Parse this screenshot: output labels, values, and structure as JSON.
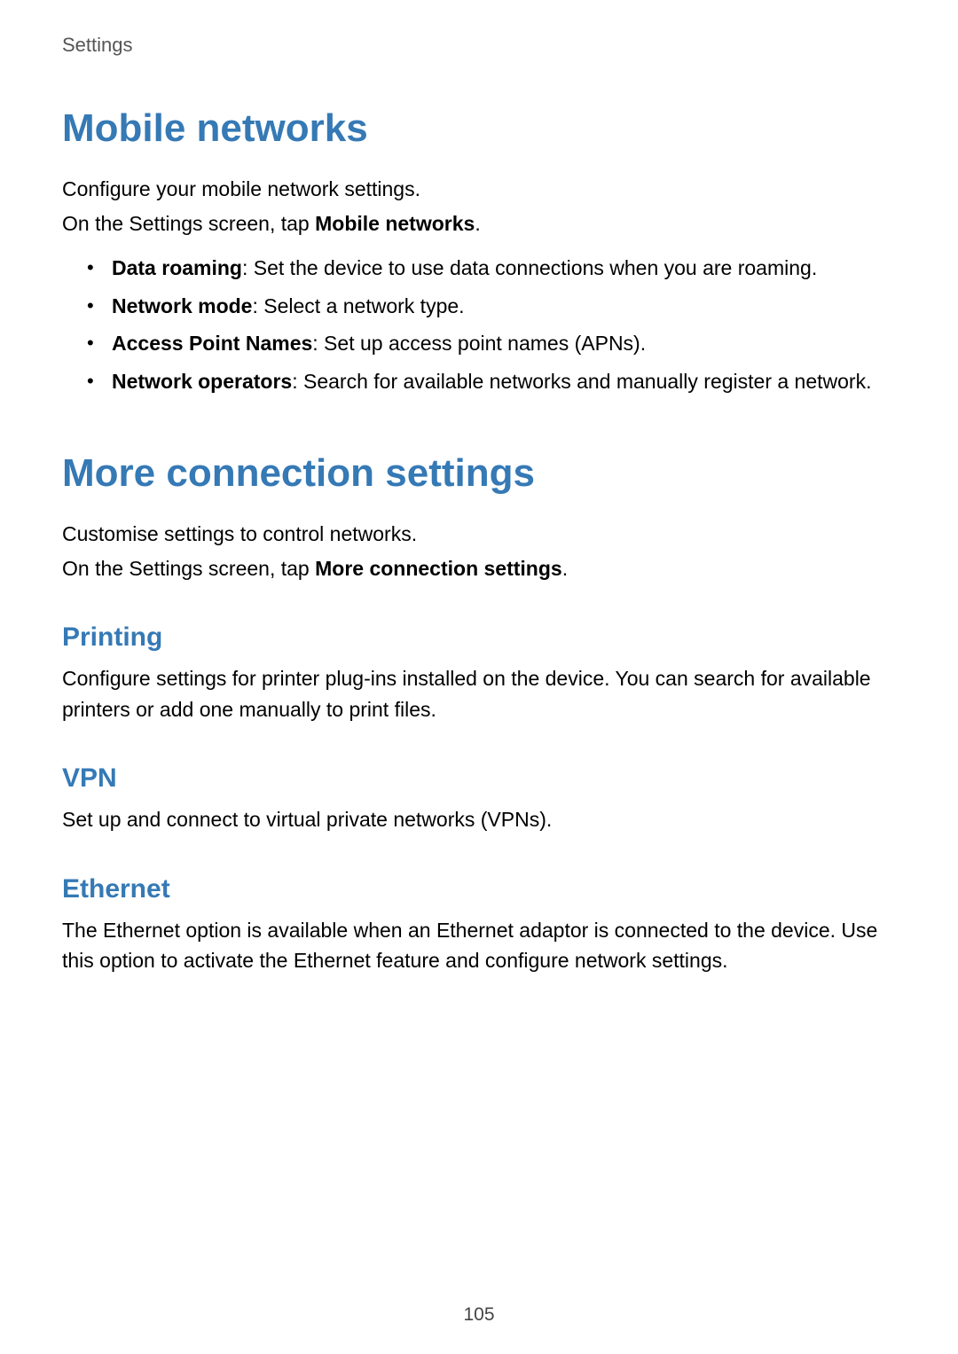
{
  "colors": {
    "heading_accent": "#3579b5",
    "body_text": "#000000",
    "breadcrumb_text": "#555555",
    "page_number": "#444444",
    "background": "#ffffff"
  },
  "typography": {
    "breadcrumb_fontsize": 22,
    "h1_fontsize": 44,
    "h2_fontsize": 30,
    "body_fontsize": 23,
    "page_number_fontsize": 21,
    "h1_weight": 700,
    "h2_weight": 700
  },
  "breadcrumb": "Settings",
  "section1": {
    "title": "Mobile networks",
    "intro1": "Configure your mobile network settings.",
    "intro2_prefix": "On the Settings screen, tap ",
    "intro2_bold": "Mobile networks",
    "intro2_suffix": ".",
    "bullets": [
      {
        "bold": "Data roaming",
        "rest": ": Set the device to use data connections when you are roaming."
      },
      {
        "bold": "Network mode",
        "rest": ": Select a network type."
      },
      {
        "bold": "Access Point Names",
        "rest": ": Set up access point names (APNs)."
      },
      {
        "bold": "Network operators",
        "rest": ": Search for available networks and manually register a network."
      }
    ]
  },
  "section2": {
    "title": "More connection settings",
    "intro1": "Customise settings to control networks.",
    "intro2_prefix": "On the Settings screen, tap ",
    "intro2_bold": "More connection settings",
    "intro2_suffix": ".",
    "subsections": [
      {
        "title": "Printing",
        "body": "Configure settings for printer plug-ins installed on the device. You can search for available printers or add one manually to print files."
      },
      {
        "title": "VPN",
        "body": "Set up and connect to virtual private networks (VPNs)."
      },
      {
        "title": "Ethernet",
        "body": "The Ethernet option is available when an Ethernet adaptor is connected to the device. Use this option to activate the Ethernet feature and configure network settings."
      }
    ]
  },
  "page_number": "105"
}
